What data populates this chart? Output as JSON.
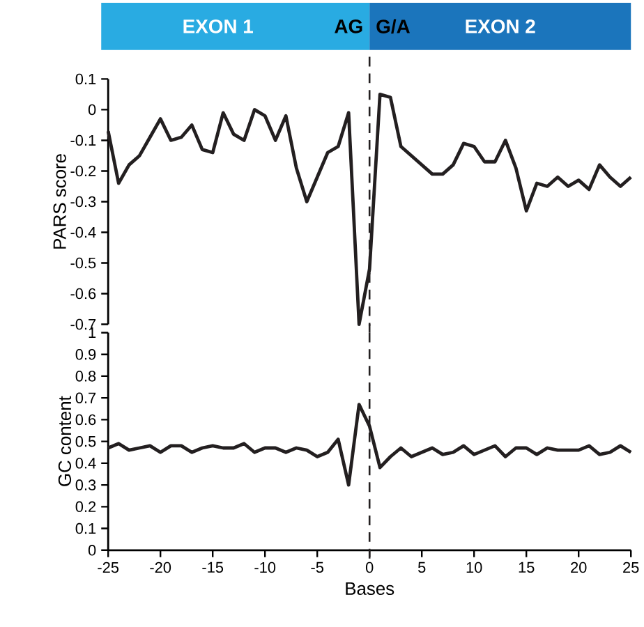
{
  "chart_data": [
    {
      "type": "line",
      "ylabel": "PARS score",
      "x": [
        -25,
        -24,
        -23,
        -22,
        -21,
        -20,
        -19,
        -18,
        -17,
        -16,
        -15,
        -14,
        -13,
        -12,
        -11,
        -10,
        -9,
        -8,
        -7,
        -6,
        -5,
        -4,
        -3,
        -2,
        -1,
        0,
        1,
        2,
        3,
        4,
        5,
        6,
        7,
        8,
        9,
        10,
        11,
        12,
        13,
        14,
        15,
        16,
        17,
        18,
        19,
        20,
        21,
        22,
        23,
        24,
        25
      ],
      "series": [
        {
          "color": "#231f20",
          "values": [
            -0.07,
            -0.24,
            -0.18,
            -0.15,
            -0.09,
            -0.03,
            -0.1,
            -0.09,
            -0.05,
            -0.13,
            -0.14,
            -0.01,
            -0.08,
            -0.1,
            0.0,
            -0.02,
            -0.1,
            -0.02,
            -0.19,
            -0.3,
            -0.22,
            -0.14,
            -0.12,
            -0.01,
            -0.7,
            -0.52,
            0.05,
            0.04,
            -0.12,
            -0.15,
            -0.18,
            -0.21,
            -0.21,
            -0.18,
            -0.11,
            -0.12,
            -0.17,
            -0.17,
            -0.1,
            -0.19,
            -0.33,
            -0.24,
            -0.25,
            -0.22,
            -0.25,
            -0.23,
            -0.26,
            -0.18,
            -0.22,
            -0.25,
            -0.22
          ]
        }
      ],
      "xlim": [
        -25,
        25
      ],
      "ylim": [
        -0.7,
        0.1
      ],
      "yticks": [
        0.1,
        0,
        -0.1,
        -0.2,
        -0.3,
        -0.4,
        -0.5,
        -0.6,
        -0.7
      ],
      "tick_labels": "y",
      "ref_lines": [
        {
          "axis": "x",
          "value": 0,
          "color": "#231f20",
          "line_style": "dashed"
        }
      ],
      "annotations": [
        "EXON 1",
        "AG",
        "G/A",
        "EXON 2"
      ]
    },
    {
      "type": "line",
      "xlabel": "Bases",
      "ylabel": "GC content",
      "x": [
        -25,
        -24,
        -23,
        -22,
        -21,
        -20,
        -19,
        -18,
        -17,
        -16,
        -15,
        -14,
        -13,
        -12,
        -11,
        -10,
        -9,
        -8,
        -7,
        -6,
        -5,
        -4,
        -3,
        -2,
        -1,
        0,
        1,
        2,
        3,
        4,
        5,
        6,
        7,
        8,
        9,
        10,
        11,
        12,
        13,
        14,
        15,
        16,
        17,
        18,
        19,
        20,
        21,
        22,
        23,
        24,
        25
      ],
      "series": [
        {
          "color": "#231f20",
          "values": [
            0.47,
            0.49,
            0.46,
            0.47,
            0.48,
            0.45,
            0.48,
            0.48,
            0.45,
            0.47,
            0.48,
            0.47,
            0.47,
            0.49,
            0.45,
            0.47,
            0.47,
            0.45,
            0.47,
            0.46,
            0.43,
            0.45,
            0.51,
            0.3,
            0.67,
            0.57,
            0.38,
            0.43,
            0.47,
            0.43,
            0.45,
            0.47,
            0.44,
            0.45,
            0.48,
            0.44,
            0.46,
            0.48,
            0.43,
            0.47,
            0.47,
            0.44,
            0.47,
            0.46,
            0.46,
            0.46,
            0.48,
            0.44,
            0.45,
            0.48,
            0.45
          ]
        }
      ],
      "xlim": [
        -25,
        25
      ],
      "xticks": [
        -25,
        -20,
        -15,
        -10,
        -5,
        0,
        5,
        10,
        15,
        20,
        25
      ],
      "ylim": [
        0,
        1
      ],
      "yticks": [
        0,
        0.1,
        0.2,
        0.3,
        0.4,
        0.5,
        0.6,
        0.7,
        0.8,
        0.9,
        1
      ],
      "ref_lines": [
        {
          "axis": "x",
          "value": 0,
          "color": "#231f20",
          "line_style": "dashed"
        }
      ]
    }
  ]
}
